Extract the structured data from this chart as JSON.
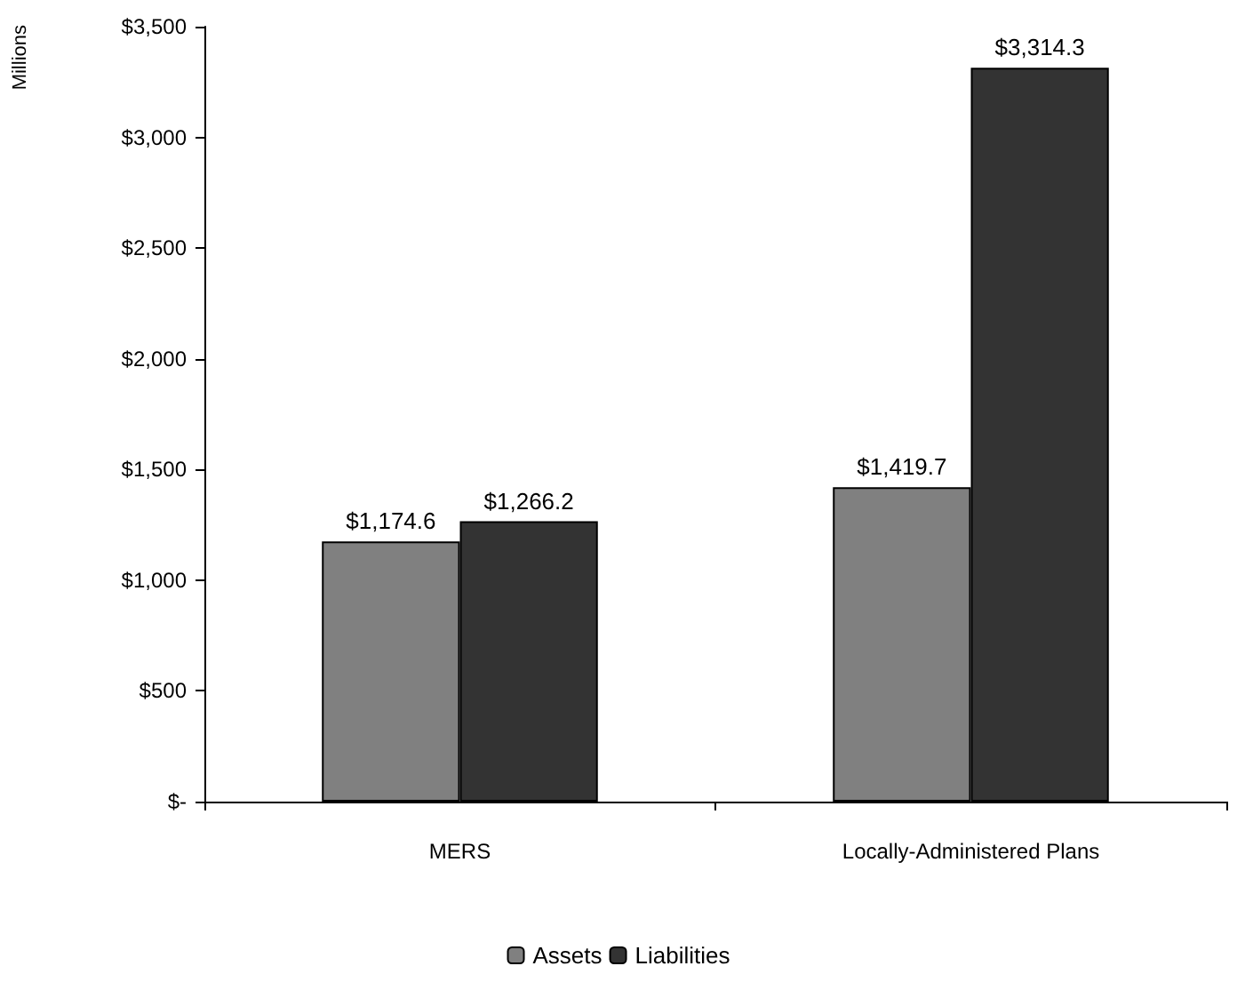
{
  "chart_data": {
    "type": "bar",
    "ylabel": "Millions",
    "categories": [
      "MERS",
      "Locally-Administered Plans"
    ],
    "series": [
      {
        "name": "Assets",
        "color": "#808080",
        "values": [
          1174.6,
          1419.7
        ],
        "value_labels": [
          "$1,174.6",
          "$1,419.7"
        ]
      },
      {
        "name": "Liabilities",
        "color": "#333333",
        "values": [
          1266.2,
          3314.3
        ],
        "value_labels": [
          "$1,266.2",
          "$3,314.3"
        ]
      }
    ],
    "ylim": [
      0,
      3500
    ],
    "yticks": [
      {
        "value": 0,
        "label": "$-"
      },
      {
        "value": 500,
        "label": "$500"
      },
      {
        "value": 1000,
        "label": "$1,000"
      },
      {
        "value": 1500,
        "label": "$1,500"
      },
      {
        "value": 2000,
        "label": "$2,000"
      },
      {
        "value": 2500,
        "label": "$2,500"
      },
      {
        "value": 3000,
        "label": "$3,000"
      },
      {
        "value": 3500,
        "label": "$3,500"
      }
    ],
    "grid": false,
    "legend": "bottom"
  }
}
